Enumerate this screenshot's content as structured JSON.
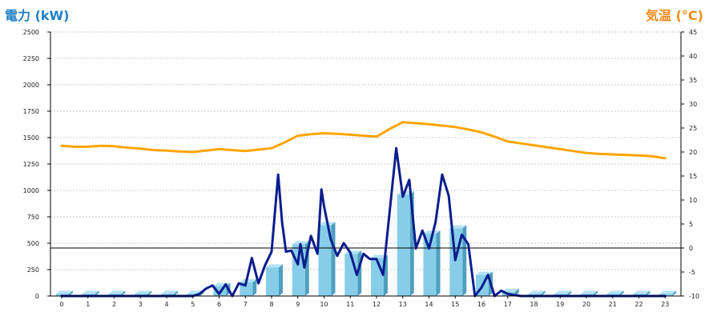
{
  "left_axis_title": "電力 (kW)",
  "right_axis_title": "気温 (°C)",
  "colors": {
    "left_title": "#1f7fc6",
    "right_title": "#f08a1a",
    "bar_face": "#87cde8",
    "bar_side": "#4f9ec0",
    "bar_top": "#b5e2f4",
    "power_line": "#0a1d8c",
    "temp_line": "#ffa500",
    "grid": "#c8c8c8"
  },
  "chart_data": {
    "type": "bar",
    "x_tick_labels": [
      "0",
      "1",
      "2",
      "3",
      "4",
      "5",
      "6",
      "7",
      "8",
      "9",
      "10",
      "11",
      "12",
      "13",
      "14",
      "15",
      "16",
      "17",
      "18",
      "19",
      "20",
      "21",
      "22",
      "23"
    ],
    "left_y_ticks": [
      "0",
      "250",
      "500",
      "750",
      "1000",
      "1250",
      "1500",
      "1750",
      "2000",
      "2250",
      "2500"
    ],
    "right_y_ticks": [
      "-10",
      "-5",
      "0",
      "5",
      "10",
      "15",
      "20",
      "25",
      "30",
      "35",
      "40",
      "45"
    ],
    "left_ylim": [
      0,
      2500
    ],
    "right_ylim": [
      -10,
      45
    ],
    "grid": true,
    "reference_line": {
      "axis": "right",
      "value": 0
    },
    "series": [
      {
        "chart": "bar",
        "axis": "left",
        "x": [
          0,
          1,
          2,
          3,
          4,
          5,
          6,
          7,
          8,
          9,
          10,
          11,
          12,
          13,
          14,
          15,
          16,
          17,
          18,
          19,
          20,
          21,
          22,
          23
        ],
        "values": [
          20,
          20,
          20,
          20,
          20,
          20,
          95,
          130,
          270,
          490,
          670,
          400,
          360,
          960,
          590,
          640,
          200,
          40,
          20,
          20,
          20,
          20,
          20,
          20
        ]
      },
      {
        "chart": "line",
        "axis": "left",
        "x": [
          0,
          0.5,
          1,
          1.5,
          2,
          2.5,
          3,
          3.5,
          4,
          4.5,
          5,
          5.25,
          5.5,
          5.75,
          6,
          6.25,
          6.5,
          6.75,
          7,
          7.25,
          7.5,
          7.75,
          8,
          8.25,
          8.4,
          8.55,
          8.75,
          9,
          9.1,
          9.25,
          9.5,
          9.75,
          9.9,
          10,
          10.25,
          10.5,
          10.75,
          11,
          11.25,
          11.5,
          11.75,
          12,
          12.25,
          12.5,
          12.75,
          13,
          13.25,
          13.5,
          13.75,
          14,
          14.25,
          14.5,
          14.75,
          15,
          15.25,
          15.5,
          15.75,
          16,
          16.25,
          16.5,
          16.75,
          17,
          17.5,
          18,
          18.5,
          19,
          19.5,
          20,
          20.5,
          21,
          21.5,
          22,
          22.5,
          23
        ],
        "values": [
          0,
          0,
          0,
          0,
          0,
          0,
          0,
          0,
          0,
          0,
          0,
          20,
          70,
          100,
          20,
          110,
          0,
          120,
          100,
          360,
          120,
          290,
          420,
          1150,
          700,
          420,
          430,
          300,
          490,
          270,
          570,
          400,
          1010,
          850,
          540,
          380,
          500,
          410,
          200,
          400,
          350,
          350,
          200,
          800,
          1400,
          940,
          1100,
          450,
          620,
          450,
          700,
          1150,
          950,
          340,
          580,
          490,
          0,
          80,
          200,
          0,
          50,
          20,
          0,
          0,
          0,
          0,
          0,
          0,
          0,
          0,
          0,
          0,
          0,
          0
        ]
      },
      {
        "chart": "line",
        "axis": "right",
        "x": [
          0,
          0.5,
          1,
          1.5,
          2,
          2.5,
          3,
          3.5,
          4,
          4.5,
          5,
          5.5,
          6,
          6.5,
          7,
          7.5,
          8,
          8.5,
          9,
          9.5,
          10,
          10.5,
          11,
          11.5,
          12,
          12.5,
          13,
          13.5,
          14,
          14.5,
          15,
          15.5,
          16,
          16.5,
          17,
          17.5,
          18,
          18.5,
          19,
          19.5,
          20,
          20.5,
          21,
          21.5,
          22,
          22.5,
          23
        ],
        "values": [
          21.3,
          21.1,
          21.1,
          21.3,
          21.2,
          20.9,
          20.7,
          20.4,
          20.3,
          20.1,
          20.0,
          20.3,
          20.6,
          20.4,
          20.2,
          20.5,
          20.8,
          22.0,
          23.4,
          23.7,
          23.9,
          23.8,
          23.6,
          23.4,
          23.2,
          24.8,
          26.2,
          26.0,
          25.8,
          25.5,
          25.2,
          24.7,
          24.1,
          23.2,
          22.2,
          21.8,
          21.4,
          21.0,
          20.6,
          20.2,
          19.8,
          19.6,
          19.5,
          19.4,
          19.3,
          19.1,
          18.7
        ]
      }
    ]
  }
}
